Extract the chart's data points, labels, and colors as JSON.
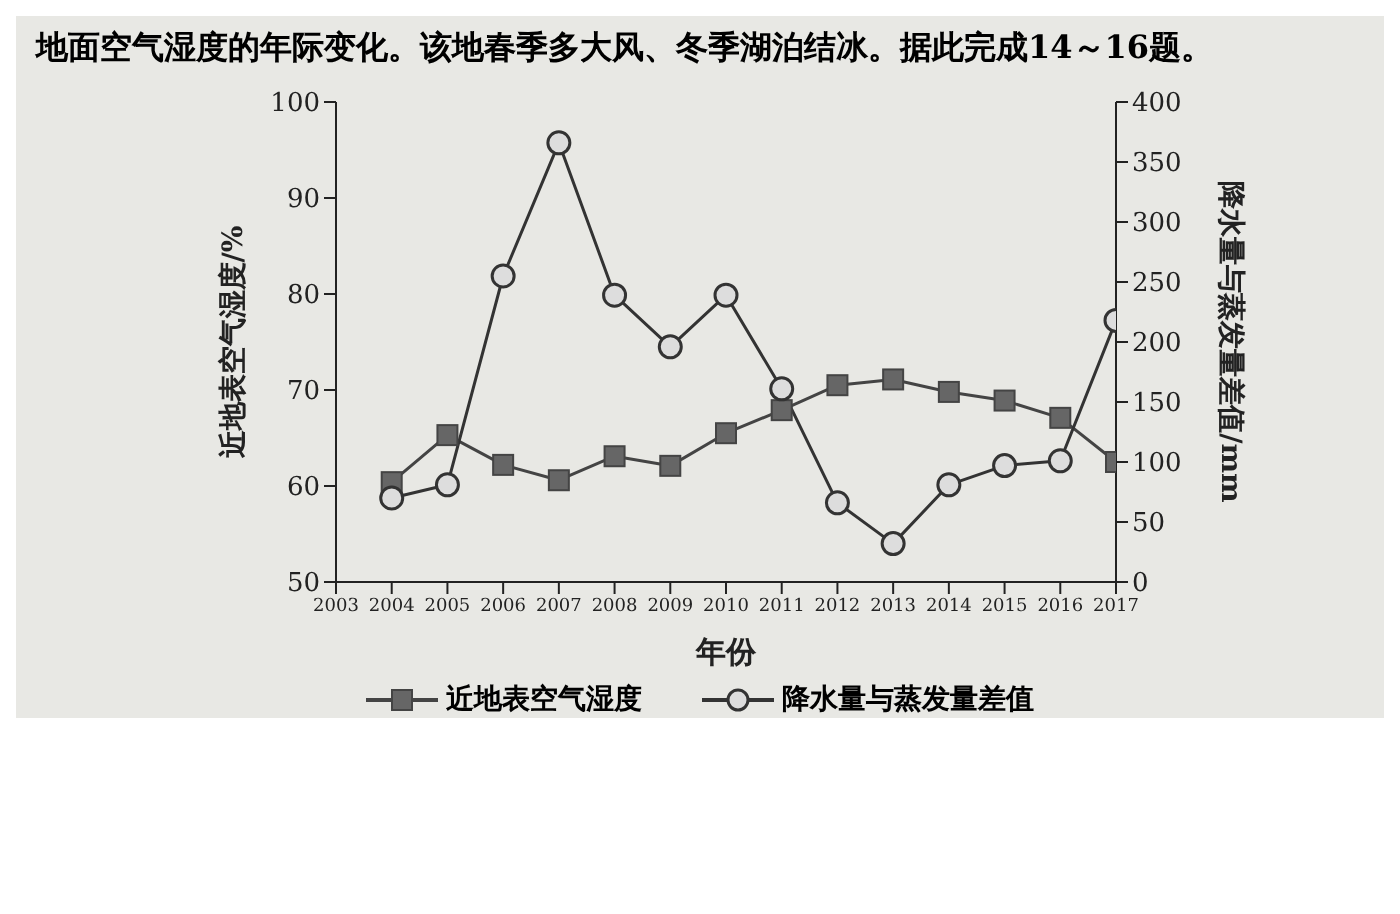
{
  "chart_data": {
    "type": "line",
    "annotations": [
      "地面空气湿度的年际变化。该地春季多大风、冬季湖泊结冰。据此完成14～16题。"
    ],
    "xlabel": "年份",
    "ylabel": "近地表空气湿度/%",
    "y2label": "降水量与蒸发量差值/mm",
    "x": [
      2004,
      2005,
      2006,
      2007,
      2008,
      2009,
      2010,
      2011,
      2012,
      2013,
      2014,
      2015,
      2016,
      2017
    ],
    "series": [
      {
        "name": "近地表空气湿度",
        "color": "#444444",
        "marker": "square",
        "values": [
          60.4,
          65.3,
          62.2,
          60.6,
          63.1,
          62.1,
          65.5,
          67.9,
          70.5,
          71.1,
          69.8,
          68.9,
          67.1,
          62.5
        ]
      },
      {
        "name": "降水量与蒸发量差值",
        "color": "#333333",
        "marker": "circle",
        "axis": "y2",
        "values": [
          70,
          81,
          255,
          366,
          239,
          196,
          239,
          161,
          66,
          32,
          81,
          97,
          101,
          218
        ]
      }
    ],
    "xlim": [
      2003,
      2017
    ],
    "xticks": [
      2003,
      2004,
      2005,
      2006,
      2007,
      2008,
      2009,
      2010,
      2011,
      2012,
      2013,
      2014,
      2015,
      2016,
      2017
    ],
    "ylim": [
      50,
      100
    ],
    "yticks": [
      50,
      60,
      70,
      80,
      90,
      100
    ],
    "y2lim": [
      0,
      400
    ],
    "y2ticks": [
      0,
      50,
      100,
      150,
      200,
      250,
      300,
      350,
      400
    ],
    "grid": false,
    "legend": "bottom",
    "line_style": "solid"
  }
}
